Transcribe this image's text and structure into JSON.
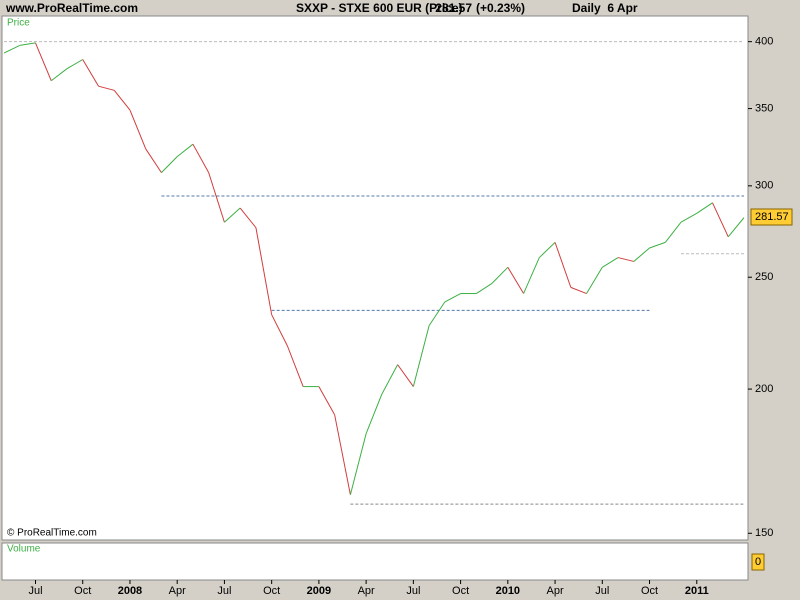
{
  "chart_data": {
    "type": "line",
    "site": "www.ProRealTime.com",
    "title": "SXXP - STXE 600 EUR (Price)",
    "price": "281.57",
    "change": "(+0.23%)",
    "period": "Daily  6 Apr",
    "panel_label": "Price",
    "copyright": "© ProRealTime.com",
    "volume_label": "Volume",
    "volume_ticks": [
      0
    ],
    "log_scale": true,
    "x": [
      "2007-05",
      "2007-06",
      "2007-07",
      "2007-08",
      "2007-09",
      "2007-10",
      "2007-11",
      "2007-12",
      "2008-01",
      "2008-02",
      "2008-03",
      "2008-04",
      "2008-05",
      "2008-06",
      "2008-07",
      "2008-08",
      "2008-09",
      "2008-10",
      "2008-11",
      "2008-12",
      "2009-01",
      "2009-02",
      "2009-03",
      "2009-04",
      "2009-05",
      "2009-06",
      "2009-07",
      "2009-08",
      "2009-09",
      "2009-10",
      "2009-11",
      "2009-12",
      "2010-01",
      "2010-02",
      "2010-03",
      "2010-04",
      "2010-05",
      "2010-06",
      "2010-07",
      "2010-08",
      "2010-09",
      "2010-10",
      "2010-11",
      "2010-12",
      "2011-01",
      "2011-02",
      "2011-03",
      "2011-04"
    ],
    "series": [
      {
        "name": "Price",
        "up_color": "#3cb043",
        "down_color": "#d23c3c",
        "values": [
          391,
          397,
          399,
          370,
          379,
          386,
          366,
          363,
          349,
          323,
          308,
          318,
          326,
          308,
          279,
          287,
          276,
          232,
          218,
          201,
          201,
          190,
          162,
          183,
          198,
          210,
          201,
          227,
          238,
          242,
          242,
          247,
          255,
          242,
          260,
          268,
          245,
          242,
          255,
          260,
          258,
          265,
          268,
          279,
          284,
          290,
          271,
          281.57
        ]
      }
    ],
    "xlim": [
      "2007-05",
      "2011-04"
    ],
    "xticks": [
      {
        "value": "2007-07",
        "label": "Jul"
      },
      {
        "value": "2007-10",
        "label": "Oct"
      },
      {
        "value": "2008-01",
        "label": "2008"
      },
      {
        "value": "2008-04",
        "label": "Apr"
      },
      {
        "value": "2008-07",
        "label": "Jul"
      },
      {
        "value": "2008-10",
        "label": "Oct"
      },
      {
        "value": "2009-01",
        "label": "2009"
      },
      {
        "value": "2009-04",
        "label": "Apr"
      },
      {
        "value": "2009-07",
        "label": "Jul"
      },
      {
        "value": "2009-10",
        "label": "Oct"
      },
      {
        "value": "2010-01",
        "label": "2010"
      },
      {
        "value": "2010-04",
        "label": "Apr"
      },
      {
        "value": "2010-07",
        "label": "Jul"
      },
      {
        "value": "2010-10",
        "label": "Oct"
      },
      {
        "value": "2011-01",
        "label": "2011"
      }
    ],
    "ylim": [
      148,
      421
    ],
    "yticks": [
      150,
      200,
      250,
      300,
      350,
      400
    ],
    "hlines": [
      {
        "value": 400,
        "from": "2007-05",
        "to": "2011-04",
        "color": "#bbbbbb"
      },
      {
        "value": 294,
        "from": "2008-03",
        "to": "2011-04",
        "color": "#5577aa"
      },
      {
        "value": 234,
        "from": "2008-10",
        "to": "2010-10",
        "color": "#5577aa"
      },
      {
        "value": 262,
        "from": "2010-12",
        "to": "2011-04",
        "color": "#bbbbbb"
      },
      {
        "value": 159,
        "from": "2009-03",
        "to": "2011-04",
        "color": "#888888"
      }
    ]
  }
}
